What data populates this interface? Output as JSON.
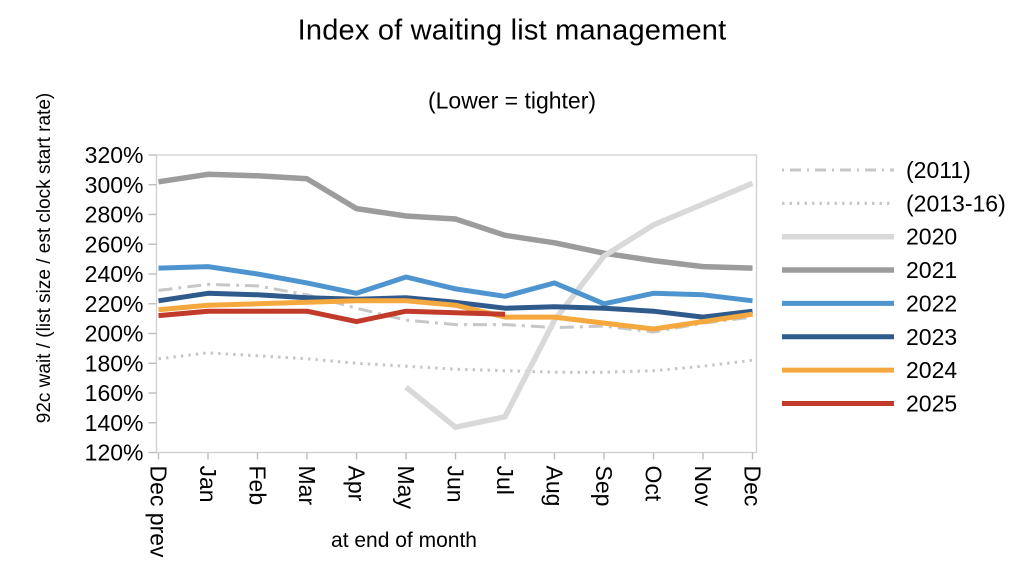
{
  "title": "Index of waiting list management",
  "subtitle": "(Lower = tighter)",
  "colors": {
    "frame": "#d2d2d2",
    "tick": "#bdbdbd",
    "text": "#000000",
    "gray_history": "#c7c7c7",
    "s2020": "#d9d9d9",
    "s2021": "#9c9c9c",
    "s2022": "#4e95d0",
    "s2023": "#2e5b8c",
    "s2024": "#f5a83e",
    "s2025": "#c13a2a"
  },
  "chart_data": {
    "type": "line",
    "title": "Index of waiting list management",
    "subtitle": "(Lower = tighter)",
    "xlabel": "at end of month",
    "ylabel": "92c wait / (list size / est clock start rate)",
    "months": [
      "Dec prev",
      "Jan",
      "Feb",
      "Mar",
      "Apr",
      "May",
      "Jun",
      "Jul",
      "Aug",
      "Sep",
      "Oct",
      "Nov",
      "Dec"
    ],
    "ylim": [
      120,
      320
    ],
    "ytick_step": 20,
    "ytick_labels": [
      "320%",
      "300%",
      "280%",
      "260%",
      "240%",
      "220%",
      "200%",
      "180%",
      "160%",
      "140%",
      "120%"
    ],
    "grid": false,
    "legend_position": "right",
    "series": [
      {
        "name": "(2011)",
        "color": "#c7c7c7",
        "style": "dashdot",
        "width": 3,
        "values": [
          229,
          233,
          232,
          226,
          217,
          209,
          206,
          206,
          204,
          205,
          201,
          207,
          211
        ]
      },
      {
        "name": "(2013-16)",
        "color": "#c7c7c7",
        "style": "dotted",
        "width": 3,
        "values": [
          183,
          187,
          185,
          183,
          180,
          178,
          176,
          175,
          174,
          174,
          175,
          178,
          182
        ]
      },
      {
        "name": "2020",
        "color": "#d9d9d9",
        "style": "solid",
        "width": 5.5,
        "values": [
          null,
          null,
          null,
          null,
          null,
          164,
          137,
          144,
          209,
          252,
          273,
          287,
          301
        ]
      },
      {
        "name": "2021",
        "color": "#9c9c9c",
        "style": "solid",
        "width": 5.5,
        "values": [
          302,
          307,
          306,
          304,
          284,
          279,
          277,
          266,
          261,
          254,
          249,
          245,
          244
        ]
      },
      {
        "name": "2022",
        "color": "#4e95d0",
        "style": "solid",
        "width": 5,
        "values": [
          244,
          245,
          240,
          234,
          227,
          238,
          230,
          225,
          234,
          220,
          227,
          226,
          222
        ]
      },
      {
        "name": "2023",
        "color": "#2e5b8c",
        "style": "solid",
        "width": 5,
        "values": [
          222,
          227,
          226,
          224,
          223,
          224,
          221,
          217,
          218,
          217,
          215,
          211,
          215
        ]
      },
      {
        "name": "2024",
        "color": "#f5a83e",
        "style": "solid",
        "width": 5,
        "values": [
          216,
          219,
          220,
          221,
          222,
          222,
          219,
          211,
          211,
          207,
          203,
          208,
          213
        ]
      },
      {
        "name": "2025",
        "color": "#c13a2a",
        "style": "solid",
        "width": 5,
        "values": [
          212,
          215,
          215,
          215,
          208,
          215,
          214,
          213,
          null,
          null,
          null,
          null,
          null
        ]
      }
    ]
  }
}
